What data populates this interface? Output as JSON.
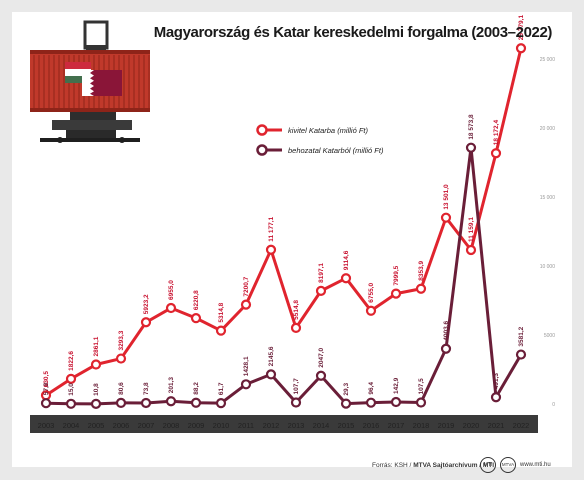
{
  "title": "Magyarország és Katar kereskedelmi forgalma (2003–2022)",
  "source": {
    "prefix": "Forrás: KSH / ",
    "bold": "MTVA Sajtóarchívum / MTI",
    "site": "www.mti.hu",
    "logo1": "MTI",
    "logo2": "MTVA"
  },
  "colors": {
    "export": "#e0242e",
    "import": "#6a1e38",
    "bar": "#3a3a3a",
    "background": "#ffffff",
    "frame": "#e9e9e9"
  },
  "icons": [
    "shipping-container-icon",
    "hungary-flag-icon",
    "qatar-flag-icon",
    "pallet-jack-icon"
  ],
  "chart_data": {
    "type": "line",
    "title": "Magyarország és Katar kereskedelmi forgalma (2003–2022)",
    "x": [
      "2003",
      "2004",
      "2005",
      "2006",
      "2007",
      "2008",
      "2009",
      "2010",
      "2011",
      "2012",
      "2013",
      "2014",
      "2015",
      "2016",
      "2017",
      "2018",
      "2019",
      "2020",
      "2021",
      "2022"
    ],
    "y_ticks": [
      "0",
      "5000",
      "10 000",
      "15 000",
      "20 000",
      "25 000"
    ],
    "ylim": [
      0,
      25000
    ],
    "legend_position": "top-left",
    "series": [
      {
        "name": "kivitel Katarba (millió Ft)",
        "color": "#e0242e",
        "values": [
          630.5,
          1822.6,
          2861.1,
          3293.3,
          5923.2,
          6955.0,
          6220.8,
          5314.8,
          7200.7,
          11177.1,
          5514.8,
          8197.1,
          9114.6,
          6755.0,
          7999.5,
          8353.9,
          13501.0,
          11159.1,
          18172.4,
          25779.1
        ],
        "labels": [
          "630,5",
          "1822,6",
          "2861,1",
          "3293,3",
          "5923,2",
          "6955,0",
          "6220,8",
          "5314,8",
          "7200,7",
          "11 177,1",
          "5514,8",
          "8197,1",
          "9114,6",
          "6755,0",
          "7999,5",
          "8353,9",
          "13 501,0",
          "11 159,1",
          "18 172,4",
          "25 779,1"
        ]
      },
      {
        "name": "behozatal Katarból (millió Ft)",
        "color": "#6a1e38",
        "values": [
          57.8,
          15.0,
          10.8,
          80.6,
          73.8,
          201.3,
          88.2,
          61.7,
          1428.1,
          2145.6,
          107.7,
          2047.0,
          29.3,
          96.4,
          142.9,
          107.5,
          4003.6,
          18573.8,
          491.3,
          3581.2
        ],
        "labels": [
          "57,8",
          "15,0",
          "10,8",
          "80,6",
          "73,8",
          "201,3",
          "88,2",
          "61,7",
          "1428,1",
          "2145,6",
          "107,7",
          "2047,0",
          "29,3",
          "96,4",
          "142,9",
          "107,5",
          "4003,6",
          "18 573,8",
          "491,3",
          "3581,2"
        ]
      }
    ]
  }
}
